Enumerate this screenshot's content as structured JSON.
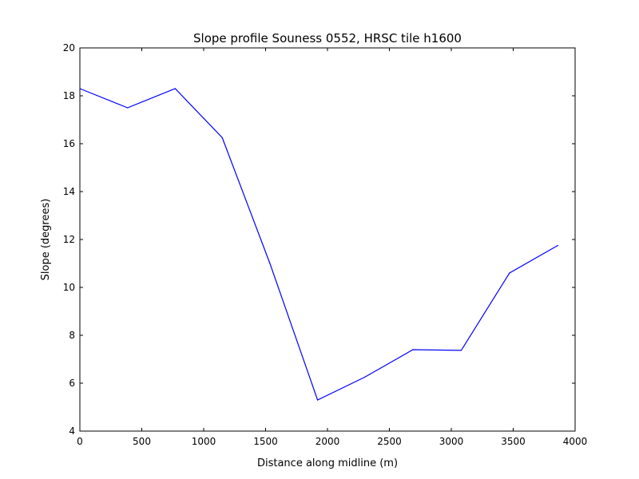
{
  "chart_data": {
    "type": "line",
    "title": "Slope profile Souness 0552, HRSC tile h1600",
    "xlabel": "Distance along midline (m)",
    "ylabel": "Slope (degrees)",
    "xlim": [
      0,
      4000
    ],
    "ylim": [
      4,
      20
    ],
    "xticks": [
      0,
      500,
      1000,
      1500,
      2000,
      2500,
      3000,
      3500,
      4000
    ],
    "yticks": [
      4,
      6,
      8,
      10,
      12,
      14,
      16,
      18,
      20
    ],
    "grid": false,
    "series": [
      {
        "color": "#0000ff",
        "x": [
          0,
          385,
          770,
          1150,
          1535,
          1920,
          2300,
          2690,
          3080,
          3470,
          3860
        ],
        "y": [
          18.3,
          17.5,
          18.3,
          16.25,
          11.0,
          5.3,
          6.25,
          7.4,
          7.37,
          10.6,
          11.75
        ]
      }
    ]
  }
}
